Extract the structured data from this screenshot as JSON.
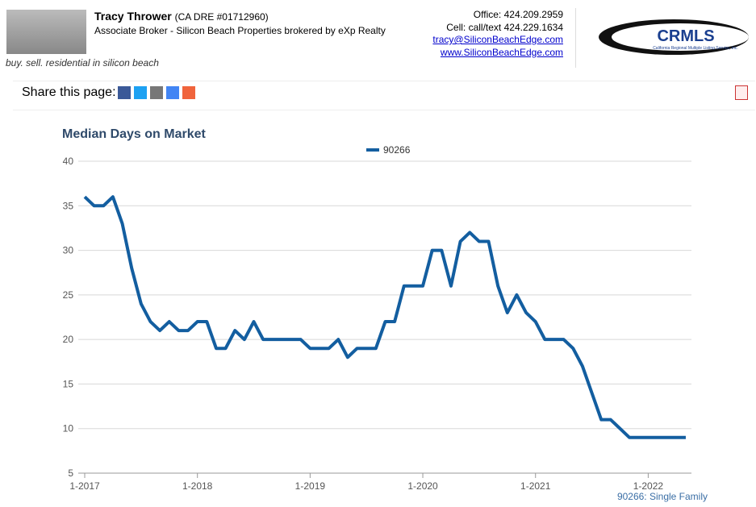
{
  "header": {
    "name": "Tracy Thrower",
    "license": "(CA DRE #01712960)",
    "role": "Associate Broker - Silicon Beach Properties brokered by eXp Realty",
    "tagline": "buy. sell. residential in silicon beach",
    "office": "Office: 424.209.2959",
    "cell": "Cell: call/text 424.229.1634",
    "email": "tracy@SiliconBeachEdge.com",
    "website": "www.SiliconBeachEdge.com",
    "logo": "CRMLS",
    "logo_sub": "California Regional Multiple Listing Service, Inc."
  },
  "share": {
    "label": "Share this page:"
  },
  "chart_data": {
    "type": "line",
    "title": "Median Days on Market",
    "categories": [
      "1-2017",
      null,
      null,
      null,
      null,
      null,
      null,
      null,
      null,
      null,
      null,
      null,
      "1-2018",
      null,
      null,
      null,
      null,
      null,
      null,
      null,
      null,
      null,
      null,
      null,
      "1-2019",
      null,
      null,
      null,
      null,
      null,
      null,
      null,
      null,
      null,
      null,
      null,
      "1-2020",
      null,
      null,
      null,
      null,
      null,
      null,
      null,
      null,
      null,
      null,
      null,
      "1-2021",
      null,
      null,
      null,
      null,
      null,
      null,
      null,
      null,
      null,
      null,
      null,
      "1-2022",
      null,
      null,
      null,
      null
    ],
    "series": [
      {
        "name": "90266",
        "color": "#135ea0",
        "values": [
          36,
          35,
          35,
          36,
          33,
          28,
          24,
          22,
          21,
          22,
          21,
          21,
          22,
          22,
          19,
          19,
          21,
          20,
          22,
          20,
          20,
          20,
          20,
          20,
          19,
          19,
          19,
          20,
          18,
          19,
          19,
          19,
          22,
          22,
          26,
          26,
          26,
          30,
          30,
          26,
          31,
          32,
          31,
          31,
          26,
          23,
          25,
          23,
          22,
          20,
          20,
          20,
          19,
          17,
          14,
          11,
          11,
          10,
          9,
          9,
          9,
          9,
          9,
          9,
          9
        ]
      }
    ],
    "ylim": [
      5,
      40
    ],
    "yticks": [
      5,
      10,
      15,
      20,
      25,
      30,
      35,
      40
    ],
    "grid": true,
    "legend": "top",
    "footnote": "90266: Single Family"
  }
}
